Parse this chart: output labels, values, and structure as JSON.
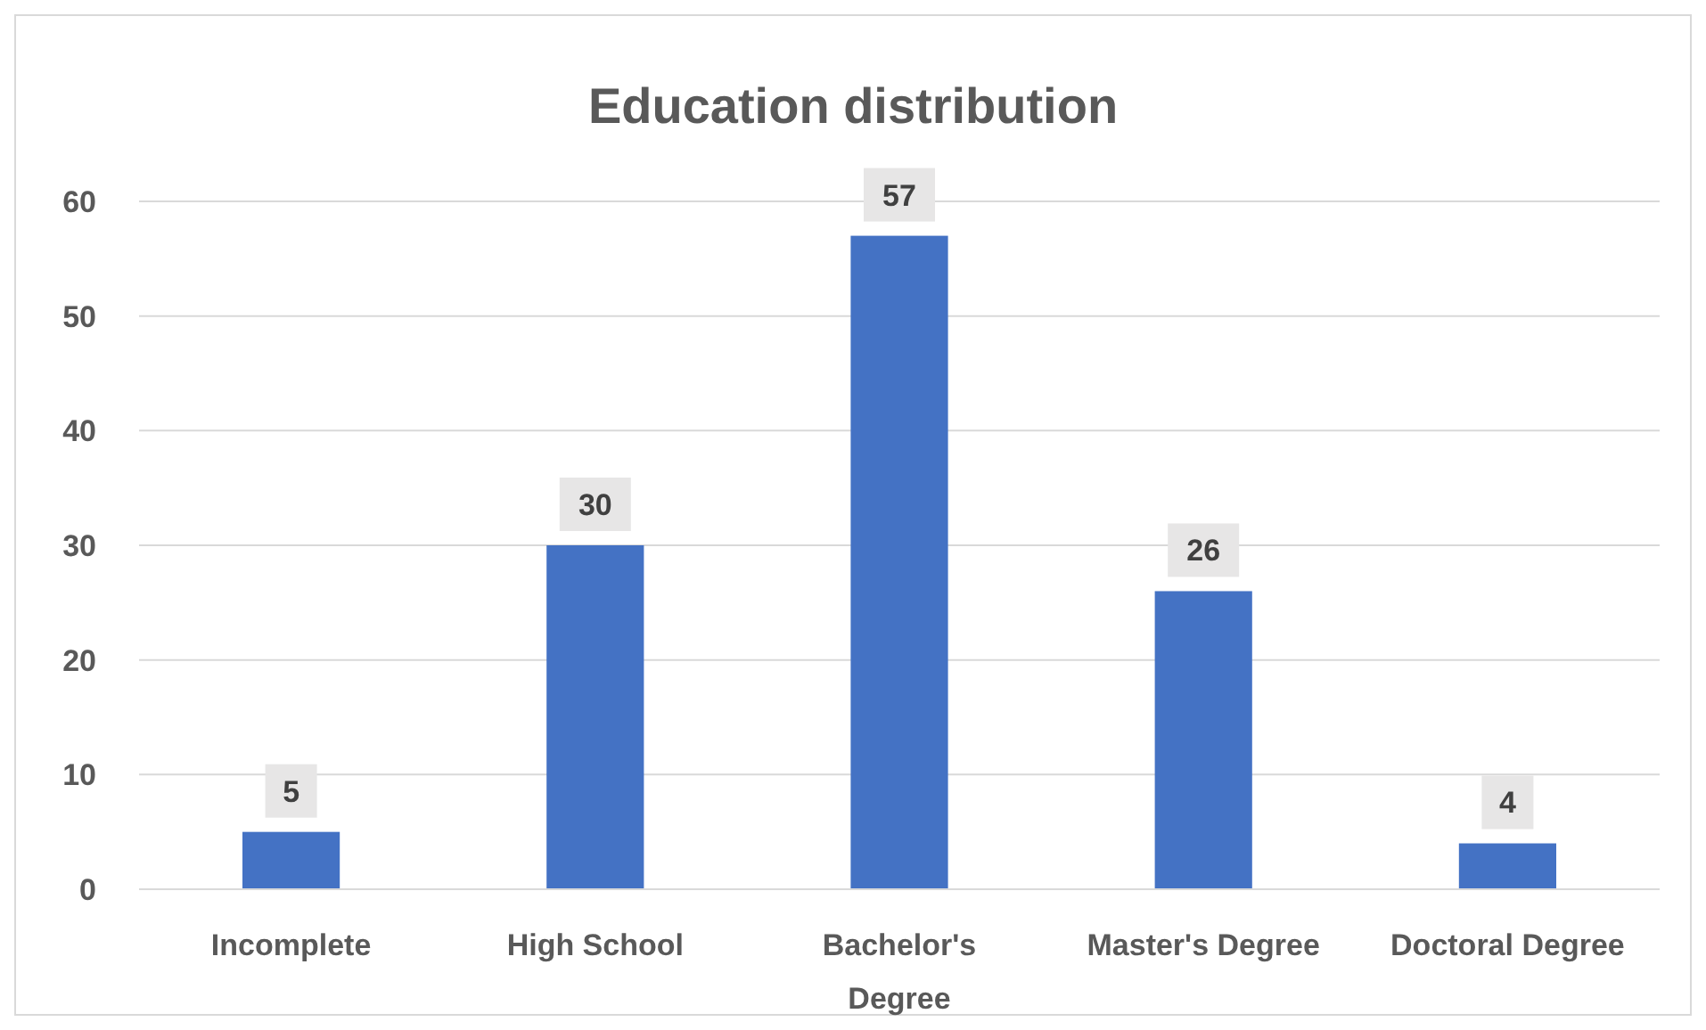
{
  "chart_data": {
    "type": "bar",
    "title": "Education distribution",
    "categories": [
      "Incomplete",
      "High School",
      "Bachelor's Degree",
      "Master's Degree",
      "Doctoral Degree"
    ],
    "values": [
      5,
      30,
      57,
      26,
      4
    ],
    "color": "#4472c4",
    "ylim": [
      0,
      60
    ],
    "yticks": [
      0,
      10,
      20,
      30,
      40,
      50,
      60
    ],
    "grid": "y",
    "data_labels": true
  }
}
